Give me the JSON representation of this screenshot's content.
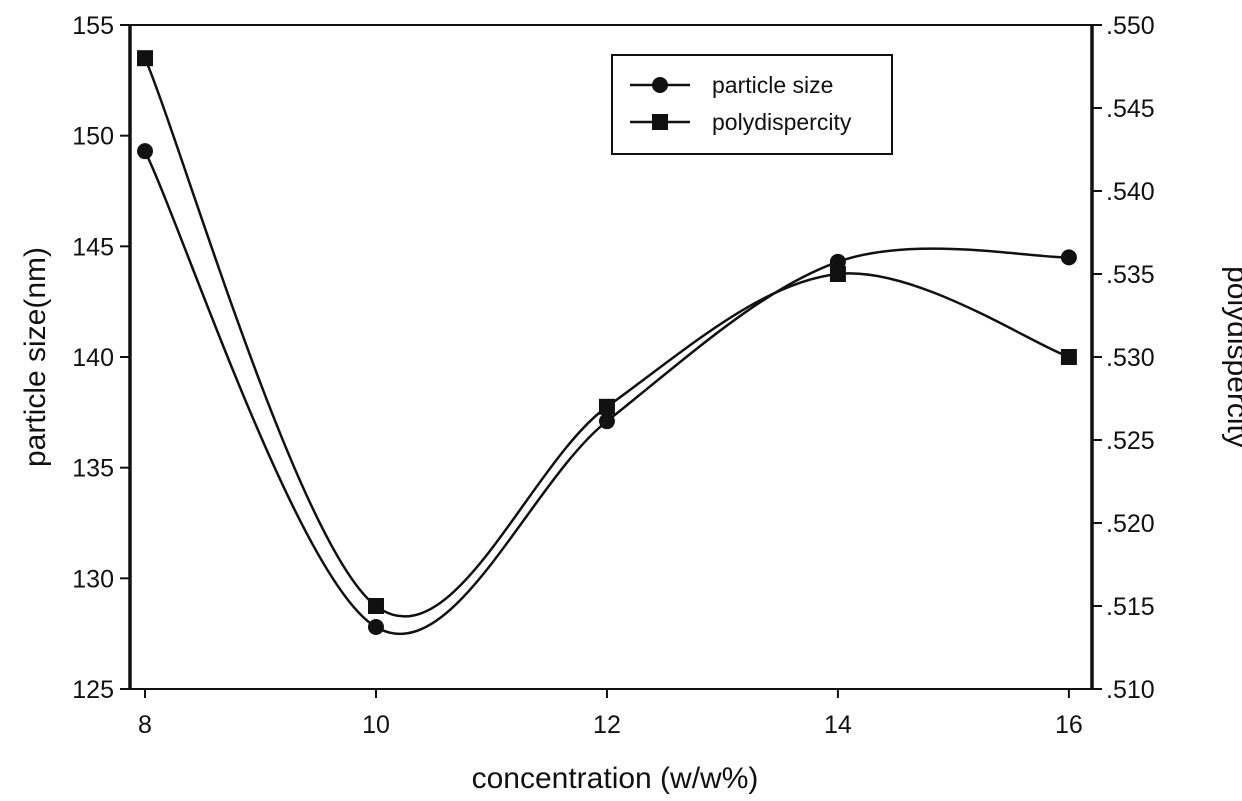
{
  "chart_data": {
    "type": "line",
    "title": "",
    "xlabel": "concentration (w/w%)",
    "ylabel_left": "particle size(nm)",
    "ylabel_right": "polydispercity",
    "x": [
      8,
      10,
      12,
      14,
      16
    ],
    "xlim": [
      7.87,
      16.2
    ],
    "ylim_left": [
      125,
      155
    ],
    "ylim_right": [
      0.51,
      0.55
    ],
    "x_ticks": [
      "8",
      "10",
      "12",
      "14",
      "16"
    ],
    "y_ticks_left": [
      "125",
      "130",
      "135",
      "140",
      "145",
      "150",
      "155"
    ],
    "y_ticks_right": [
      ".510",
      ".515",
      ".520",
      ".525",
      ".530",
      ".535",
      ".540",
      ".545",
      ".550"
    ],
    "grid": false,
    "legend_position": "top-right",
    "series": [
      {
        "name": "particle size",
        "axis": "left",
        "marker": "circle",
        "values": [
          149.3,
          127.8,
          137.1,
          144.3,
          144.5
        ]
      },
      {
        "name": "polydispercity",
        "axis": "right",
        "marker": "square",
        "values": [
          0.548,
          0.515,
          0.527,
          0.535,
          0.53
        ]
      }
    ],
    "colors": {
      "line": "#111111",
      "background": "#ffffff"
    }
  }
}
